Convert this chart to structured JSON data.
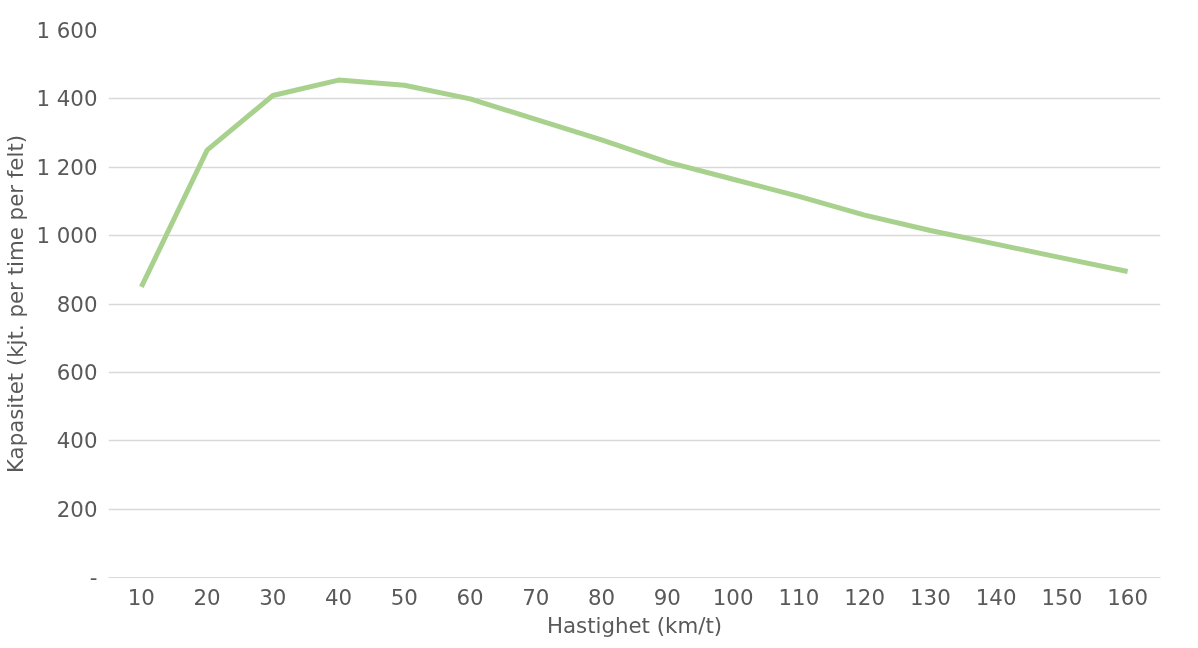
{
  "chart_data": {
    "type": "line",
    "xlabel": "Hastighet (km/t)",
    "ylabel": "Kapasitet (kjt. per time per felt)",
    "categories": [
      "10",
      "20",
      "30",
      "40",
      "50",
      "60",
      "70",
      "80",
      "90",
      "100",
      "110",
      "120",
      "130",
      "140",
      "150",
      "160"
    ],
    "series": [
      {
        "color": "#a9d18e",
        "values": [
          850,
          1250,
          1410,
          1455,
          1440,
          1400,
          1340,
          1280,
          1215,
          1165,
          1115,
          1060,
          1015,
          975,
          935,
          895
        ]
      }
    ],
    "ylim": [
      0,
      1600
    ],
    "yticks": [
      {
        "value": 0,
        "label": "-"
      },
      {
        "value": 200,
        "label": "200"
      },
      {
        "value": 400,
        "label": "400"
      },
      {
        "value": 600,
        "label": "600"
      },
      {
        "value": 800,
        "label": "800"
      },
      {
        "value": 1000,
        "label": "1 000"
      },
      {
        "value": 1200,
        "label": "1 200"
      },
      {
        "value": 1400,
        "label": "1 400"
      },
      {
        "value": 1600,
        "label": "1 600"
      }
    ],
    "grid": "y",
    "marker": "none",
    "line_style": "solid"
  }
}
